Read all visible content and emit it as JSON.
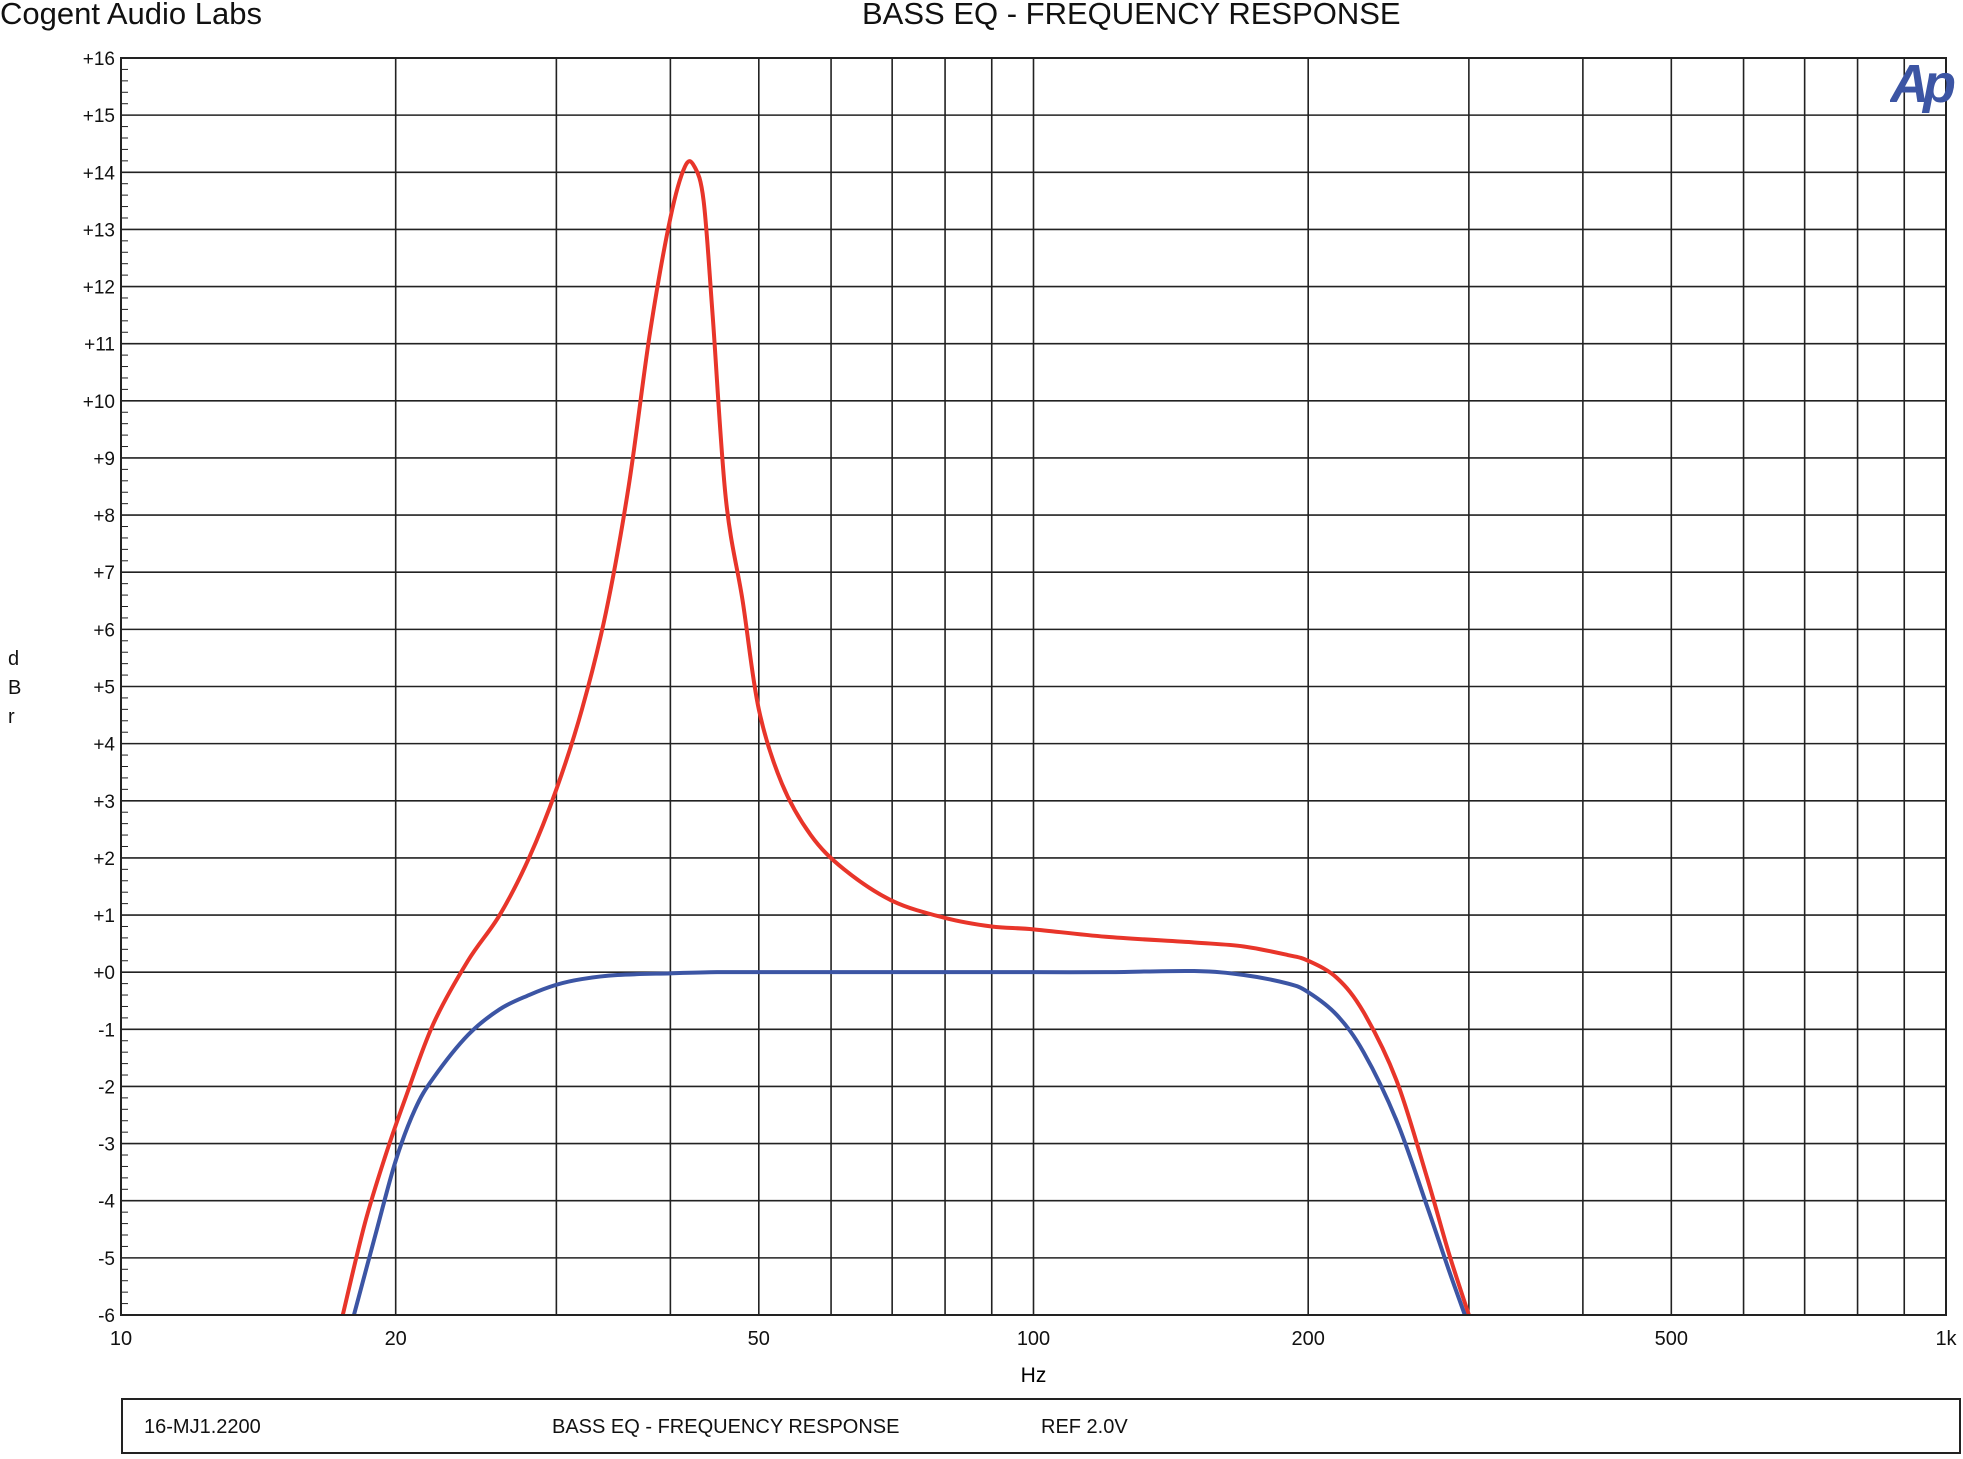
{
  "header": {
    "company": "Cogent Audio Labs",
    "title": "BASS EQ  -  FREQUENCY RESPONSE"
  },
  "logo_text": "Ap",
  "footer": {
    "id": "16-MJ1.2200",
    "title": "BASS EQ  -  FREQUENCY RESPONSE",
    "ref": "REF 2.0V"
  },
  "chart_data": {
    "type": "line",
    "title": "BASS EQ  -  FREQUENCY RESPONSE",
    "xlabel": "Hz",
    "ylabel": "dBr",
    "x_scale": "log",
    "xlim": [
      10,
      1000
    ],
    "ylim": [
      -6,
      16
    ],
    "grid": true,
    "x_tick_labels": [
      {
        "value": 10,
        "label": "10"
      },
      {
        "value": 20,
        "label": "20"
      },
      {
        "value": 50,
        "label": "50"
      },
      {
        "value": 100,
        "label": "100"
      },
      {
        "value": 200,
        "label": "200"
      },
      {
        "value": 500,
        "label": "500"
      },
      {
        "value": 1000,
        "label": "1k"
      }
    ],
    "y_tick_labels": [
      {
        "value": 16,
        "label": "+16"
      },
      {
        "value": 15,
        "label": "+15"
      },
      {
        "value": 14,
        "label": "+14"
      },
      {
        "value": 13,
        "label": "+13"
      },
      {
        "value": 12,
        "label": "+12"
      },
      {
        "value": 11,
        "label": "+11"
      },
      {
        "value": 10,
        "label": "+10"
      },
      {
        "value": 9,
        "label": "+9"
      },
      {
        "value": 8,
        "label": "+8"
      },
      {
        "value": 7,
        "label": "+7"
      },
      {
        "value": 6,
        "label": "+6"
      },
      {
        "value": 5,
        "label": "+5"
      },
      {
        "value": 4,
        "label": "+4"
      },
      {
        "value": 3,
        "label": "+3"
      },
      {
        "value": 2,
        "label": "+2"
      },
      {
        "value": 1,
        "label": "+1"
      },
      {
        "value": 0,
        "label": "+0"
      },
      {
        "value": -1,
        "label": "-1"
      },
      {
        "value": -2,
        "label": "-2"
      },
      {
        "value": -3,
        "label": "-3"
      },
      {
        "value": -4,
        "label": "-4"
      },
      {
        "value": -5,
        "label": "-5"
      },
      {
        "value": -6,
        "label": "-6"
      }
    ],
    "series": [
      {
        "color": "#e8352a",
        "x": [
          17.5,
          18.5,
          19.5,
          20.5,
          22,
          24,
          26,
          28,
          30,
          32,
          34,
          36,
          38,
          40,
          41.5,
          42.5,
          43.5,
          44.5,
          46,
          48,
          50,
          53,
          57,
          62,
          70,
          80,
          90,
          100,
          120,
          150,
          170,
          190,
          200,
          215,
          230,
          250,
          270,
          285,
          300
        ],
        "y": [
          -6,
          -4.4,
          -3.2,
          -2.2,
          -0.9,
          0.2,
          1,
          2,
          3.2,
          4.6,
          6.3,
          8.5,
          11.2,
          13.2,
          14.1,
          14.1,
          13.5,
          11.5,
          8.3,
          6.5,
          4.6,
          3.3,
          2.4,
          1.8,
          1.25,
          0.95,
          0.8,
          0.75,
          0.62,
          0.52,
          0.45,
          0.3,
          0.2,
          -0.1,
          -0.7,
          -1.9,
          -3.6,
          -4.9,
          -6
        ]
      },
      {
        "color": "#3c55a4",
        "x": [
          18,
          19,
          20,
          21,
          22,
          24,
          26,
          28,
          30,
          32,
          35,
          40,
          45,
          50,
          60,
          70,
          80,
          100,
          120,
          150,
          170,
          190,
          200,
          215,
          230,
          250,
          270,
          285,
          297
        ],
        "y": [
          -6,
          -4.6,
          -3.3,
          -2.4,
          -1.85,
          -1.1,
          -0.65,
          -0.4,
          -0.22,
          -0.12,
          -0.05,
          -0.02,
          0,
          0,
          0,
          0,
          0,
          0,
          0,
          0.02,
          -0.05,
          -0.2,
          -0.35,
          -0.75,
          -1.4,
          -2.6,
          -4.1,
          -5.2,
          -6
        ]
      }
    ]
  }
}
